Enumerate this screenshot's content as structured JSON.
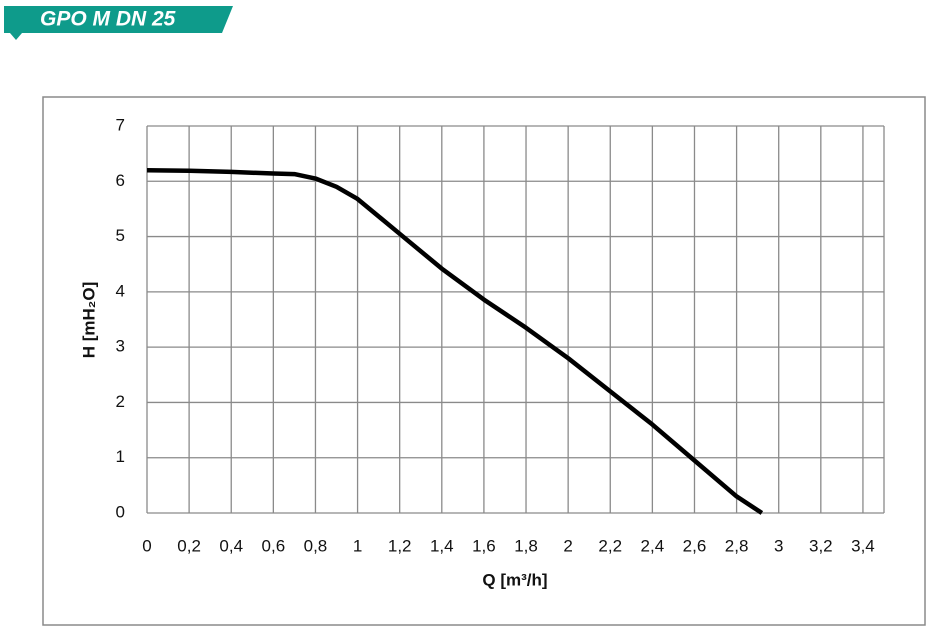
{
  "chart_data": {
    "type": "line",
    "title": "GPO M DN 25",
    "x_label": "Q [m³/h]",
    "y_label": "H [mH₂O]",
    "x": [
      0,
      0.2,
      0.4,
      0.6,
      0.7,
      0.8,
      0.9,
      1.0,
      1.2,
      1.4,
      1.6,
      1.8,
      2.0,
      2.2,
      2.4,
      2.6,
      2.8,
      2.92
    ],
    "values": [
      6.2,
      6.19,
      6.17,
      6.14,
      6.13,
      6.05,
      5.9,
      5.68,
      5.05,
      4.42,
      3.86,
      3.35,
      2.8,
      2.2,
      1.6,
      0.95,
      0.3,
      0
    ],
    "color": "#000000",
    "xlim": [
      0,
      3.5
    ],
    "xticks": [
      0,
      {
        "value": 0.2,
        "label": "0,2"
      },
      {
        "value": 0.4,
        "label": "0,4"
      },
      {
        "value": 0.6,
        "label": "0,6"
      },
      {
        "value": 0.8,
        "label": "0,8"
      },
      1,
      {
        "value": 1.2,
        "label": "1,2"
      },
      {
        "value": 1.4,
        "label": "1,4"
      },
      {
        "value": 1.6,
        "label": "1,6"
      },
      {
        "value": 1.8,
        "label": "1,8"
      },
      2,
      {
        "value": 2.2,
        "label": "2,2"
      },
      {
        "value": 2.4,
        "label": "2,4"
      },
      {
        "value": 2.6,
        "label": "2,6"
      },
      {
        "value": 2.8,
        "label": "2,8"
      },
      3,
      {
        "value": 3.2,
        "label": "3,2"
      },
      {
        "value": 3.4,
        "label": "3,4"
      }
    ],
    "ylim": [
      0,
      7
    ],
    "yticks": [
      0,
      1,
      2,
      3,
      4,
      5,
      6,
      7
    ],
    "grid": true
  }
}
